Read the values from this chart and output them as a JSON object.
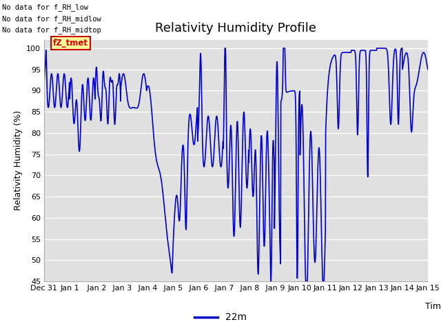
{
  "title": "Relativity Humidity Profile",
  "ylabel": "Relativity Humidity (%)",
  "xlabel": "Time",
  "ylim": [
    45,
    102
  ],
  "yticks": [
    45,
    50,
    55,
    60,
    65,
    70,
    75,
    80,
    85,
    90,
    95,
    100
  ],
  "line_color": "#0000cc",
  "line_width": 1.2,
  "background_color": "#ffffff",
  "plot_bg_color": "#e0e0e0",
  "legend_label": "22m",
  "annotations": [
    "No data for f_RH_low",
    "No data for f_RH_midlow",
    "No data for f_RH_midtop"
  ],
  "legend_box_color": "#ffff99",
  "legend_box_edge": "#cc0000",
  "legend_text_color": "#cc0000",
  "legend_box_label": "fZ_tmet",
  "x_tick_labels": [
    "Dec 31",
    "Jan 1",
    " Jan 2",
    " Jan 3",
    " Jan 4",
    " Jan 5",
    " Jan 6",
    " Jan 7",
    " Jan 8",
    " Jan 9",
    "Jan 10",
    "Jan 11",
    "Jan 12",
    "Jan 13",
    "Jan 14",
    "Jan 15"
  ],
  "x_tick_positions": [
    0,
    1,
    2,
    3,
    4,
    5,
    6,
    7,
    8,
    9,
    10,
    11,
    12,
    13,
    14,
    15
  ],
  "figsize": [
    6.4,
    4.8
  ],
  "dpi": 100
}
